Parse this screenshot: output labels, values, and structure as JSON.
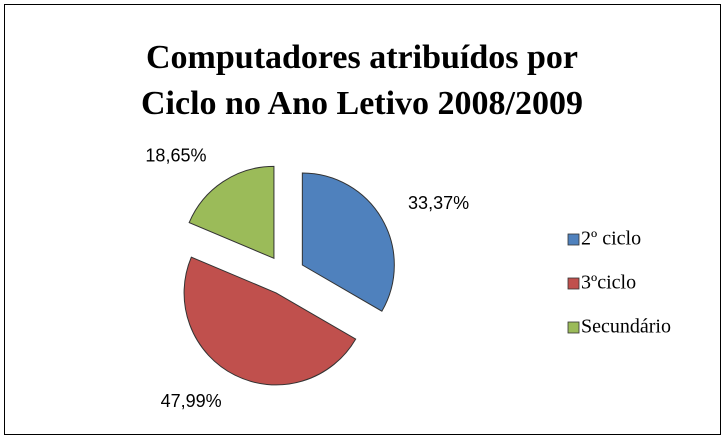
{
  "chart_data": {
    "type": "pie",
    "title": "Computadores atribuídos por Ciclo no Ano Letivo 2008/2009",
    "categories": [
      "2º ciclo",
      "3ºciclo",
      "Secundário"
    ],
    "values": [
      33.37,
      47.99,
      18.65
    ],
    "value_labels": [
      "33,37%",
      "47,99%",
      "18,65%"
    ],
    "colors": [
      "#4f81bd",
      "#c0504d",
      "#9bbb59"
    ],
    "legend": "right"
  }
}
